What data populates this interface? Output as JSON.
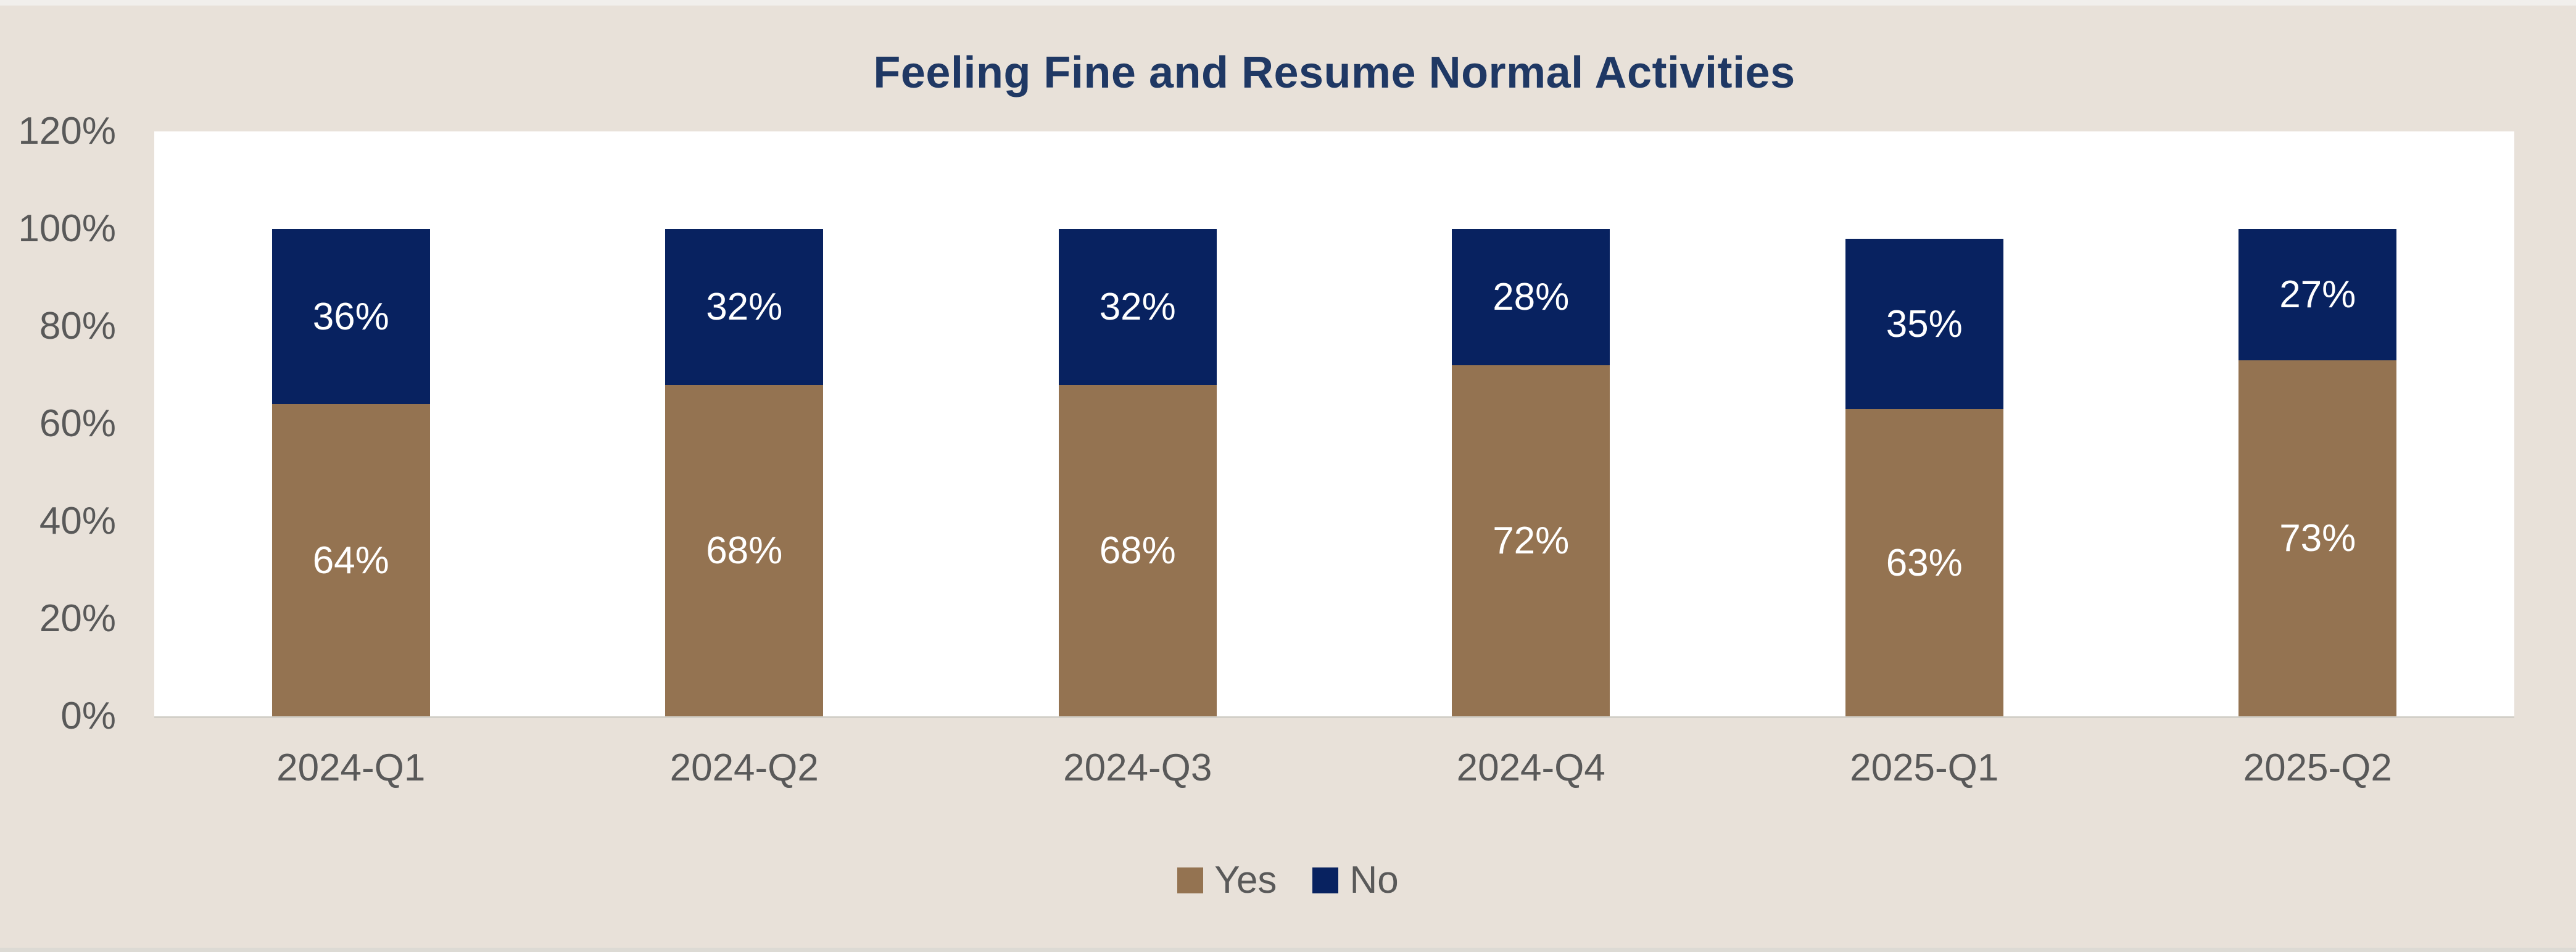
{
  "title": "Feeling Fine and Resume Normal Activities",
  "chart_data": {
    "type": "bar",
    "variant": "stacked-column",
    "title": "Feeling Fine and Resume Normal Activities",
    "categories": [
      "2024-Q1",
      "2024-Q2",
      "2024-Q3",
      "2024-Q4",
      "2025-Q1",
      "2025-Q2"
    ],
    "series": [
      {
        "name": "Yes",
        "color": "#947351",
        "values": [
          64,
          68,
          68,
          72,
          63,
          73
        ]
      },
      {
        "name": "No",
        "color": "#082260",
        "values": [
          36,
          32,
          32,
          28,
          35,
          27
        ]
      }
    ],
    "data_label_suffix": "%",
    "data_label_color": "#ffffff",
    "y_axis": {
      "min": 0,
      "max": 120,
      "tick_step": 20,
      "ticks": [
        "0%",
        "20%",
        "40%",
        "60%",
        "80%",
        "100%",
        "120%"
      ],
      "grid": false
    },
    "x_axis": {
      "label": ""
    },
    "legend": {
      "position": "bottom-center",
      "entries": [
        "Yes",
        "No"
      ]
    }
  },
  "colors": {
    "page_background": "#e8e1d9",
    "plot_background": "#ffffff",
    "title_text": "#1f3864",
    "axis_text": "#595959",
    "axis_line": "#d2cfc8",
    "series_yes": "#947351",
    "series_no": "#082260"
  }
}
